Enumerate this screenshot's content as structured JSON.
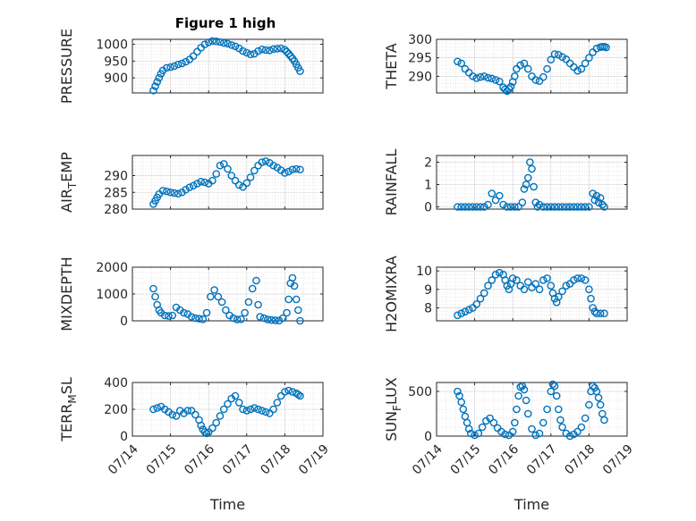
{
  "figure_title": "Figure 1 high",
  "colors": {
    "marker": "#0072BD",
    "axes": "#262626",
    "grid": "#d0d0d0"
  },
  "chart_data": [
    {
      "id": "pressure",
      "type": "scatter",
      "title": "Figure 1 high",
      "ylabel": "PRESSURE",
      "xlabel": "",
      "xlim": [
        "07/14",
        "07/19"
      ],
      "ylim": [
        855,
        1015
      ],
      "yticks": [
        900,
        950,
        1000
      ],
      "xticklabels": [],
      "grid": true,
      "x": [
        0.55,
        0.6,
        0.65,
        0.7,
        0.75,
        0.8,
        0.9,
        1.0,
        1.1,
        1.2,
        1.3,
        1.4,
        1.5,
        1.6,
        1.7,
        1.8,
        1.9,
        2.0,
        2.1,
        2.2,
        2.3,
        2.4,
        2.5,
        2.6,
        2.7,
        2.8,
        2.9,
        3.0,
        3.1,
        3.2,
        3.3,
        3.4,
        3.5,
        3.6,
        3.7,
        3.8,
        3.9,
        4.0,
        4.05,
        4.1,
        4.15,
        4.2,
        4.25,
        4.3,
        4.35,
        4.4
      ],
      "y": [
        862,
        875,
        888,
        900,
        912,
        922,
        930,
        932,
        935,
        940,
        943,
        948,
        955,
        965,
        978,
        990,
        1000,
        1006,
        1010,
        1009,
        1007,
        1004,
        1002,
        998,
        994,
        988,
        980,
        975,
        970,
        972,
        980,
        985,
        983,
        982,
        986,
        987,
        988,
        984,
        978,
        972,
        965,
        958,
        950,
        940,
        930,
        920
      ]
    },
    {
      "id": "theta",
      "type": "scatter",
      "ylabel": "THETA",
      "xlabel": "",
      "xlim": [
        "07/14",
        "07/19"
      ],
      "ylim": [
        285.5,
        300
      ],
      "yticks": [
        290,
        295,
        300
      ],
      "xticklabels": [],
      "grid": true,
      "x": [
        0.55,
        0.65,
        0.75,
        0.85,
        0.95,
        1.05,
        1.15,
        1.25,
        1.35,
        1.45,
        1.55,
        1.65,
        1.75,
        1.8,
        1.85,
        1.9,
        1.95,
        2.0,
        2.05,
        2.1,
        2.2,
        2.3,
        2.4,
        2.5,
        2.6,
        2.7,
        2.8,
        2.9,
        3.0,
        3.1,
        3.2,
        3.3,
        3.4,
        3.5,
        3.6,
        3.7,
        3.8,
        3.9,
        4.0,
        4.1,
        4.2,
        4.3,
        4.35,
        4.4,
        4.45
      ],
      "y": [
        294,
        293.5,
        292,
        291,
        290,
        289.5,
        289.8,
        290,
        289.6,
        289.4,
        289,
        288.6,
        287,
        286.5,
        286,
        286.6,
        287.2,
        288.5,
        290,
        292,
        293,
        293.5,
        292,
        290,
        289,
        288.7,
        289.8,
        292,
        294.5,
        296,
        295.8,
        295.2,
        294.6,
        293.5,
        292.5,
        291.5,
        292,
        293.5,
        295,
        296.5,
        297.5,
        297.9,
        298,
        298,
        297.8
      ]
    },
    {
      "id": "air_temp",
      "type": "scatter",
      "ylabel": "AIR_TEMP",
      "ylabel_parts": [
        "AIR",
        "T",
        "EMP"
      ],
      "xlabel": "",
      "xlim": [
        "07/14",
        "07/19"
      ],
      "ylim": [
        280,
        296
      ],
      "yticks": [
        280,
        285,
        290
      ],
      "xticklabels": [],
      "grid": true,
      "x": [
        0.55,
        0.6,
        0.65,
        0.7,
        0.8,
        0.9,
        1.0,
        1.1,
        1.2,
        1.3,
        1.4,
        1.5,
        1.6,
        1.7,
        1.8,
        1.9,
        2.0,
        2.1,
        2.2,
        2.3,
        2.4,
        2.5,
        2.6,
        2.7,
        2.8,
        2.9,
        3.0,
        3.1,
        3.2,
        3.3,
        3.4,
        3.5,
        3.6,
        3.7,
        3.8,
        3.9,
        4.0,
        4.1,
        4.2,
        4.3,
        4.4
      ],
      "y": [
        281.5,
        282.5,
        283.5,
        284.5,
        285.5,
        285.3,
        285,
        284.8,
        284.6,
        285,
        285.8,
        286.5,
        287,
        287.6,
        288.2,
        288,
        287.6,
        288.5,
        290.5,
        293,
        293.5,
        292,
        290,
        288.5,
        287.2,
        286.6,
        287.8,
        289.5,
        291.5,
        293,
        294,
        294.3,
        293.8,
        293,
        292.4,
        291.6,
        290.8,
        291.2,
        291.8,
        292,
        291.8
      ]
    },
    {
      "id": "rainfall",
      "type": "scatter",
      "ylabel": "RAINFALL",
      "xlabel": "",
      "xlim": [
        "07/14",
        "07/19"
      ],
      "ylim": [
        -0.1,
        2.3
      ],
      "yticks": [
        0,
        1,
        2
      ],
      "xticklabels": [],
      "grid": true,
      "x": [
        0.55,
        0.65,
        0.75,
        0.85,
        0.95,
        1.05,
        1.15,
        1.25,
        1.35,
        1.45,
        1.55,
        1.65,
        1.75,
        1.85,
        1.95,
        2.05,
        2.15,
        2.25,
        2.3,
        2.35,
        2.4,
        2.45,
        2.5,
        2.55,
        2.6,
        2.65,
        2.7,
        2.8,
        2.9,
        3.0,
        3.1,
        3.2,
        3.3,
        3.4,
        3.5,
        3.6,
        3.7,
        3.8,
        3.9,
        4.0,
        4.1,
        4.15,
        4.2,
        4.25,
        4.3,
        4.35,
        4.4
      ],
      "y": [
        0,
        0,
        0,
        0,
        0,
        0,
        0,
        0,
        0.1,
        0.6,
        0.3,
        0.5,
        0.1,
        0,
        0,
        0,
        0,
        0.2,
        0.8,
        1.0,
        1.3,
        2.0,
        1.7,
        0.9,
        0.2,
        0,
        0.1,
        0,
        0,
        0,
        0,
        0,
        0,
        0,
        0,
        0,
        0,
        0,
        0,
        0,
        0.6,
        0.3,
        0.5,
        0.2,
        0.4,
        0.1,
        0
      ]
    },
    {
      "id": "mixdepth",
      "type": "scatter",
      "ylabel": "MIXDEPTH",
      "xlabel": "",
      "xlim": [
        "07/14",
        "07/19"
      ],
      "ylim": [
        0,
        2000
      ],
      "yticks": [
        0,
        1000,
        2000
      ],
      "xticklabels": [],
      "grid": true,
      "x": [
        0.55,
        0.6,
        0.65,
        0.7,
        0.75,
        0.85,
        0.95,
        1.05,
        1.15,
        1.25,
        1.35,
        1.45,
        1.55,
        1.65,
        1.75,
        1.85,
        1.95,
        2.05,
        2.15,
        2.25,
        2.35,
        2.45,
        2.55,
        2.65,
        2.75,
        2.85,
        2.95,
        3.05,
        3.15,
        3.25,
        3.3,
        3.35,
        3.45,
        3.55,
        3.65,
        3.75,
        3.85,
        3.95,
        4.05,
        4.1,
        4.15,
        4.2,
        4.25,
        4.3,
        4.35,
        4.4
      ],
      "y": [
        1200,
        900,
        600,
        400,
        300,
        200,
        180,
        200,
        500,
        400,
        300,
        250,
        150,
        100,
        80,
        60,
        300,
        900,
        1150,
        900,
        700,
        400,
        200,
        100,
        50,
        60,
        300,
        700,
        1200,
        1500,
        600,
        150,
        100,
        50,
        30,
        20,
        10,
        100,
        300,
        800,
        1400,
        1600,
        1300,
        800,
        400,
        0
      ]
    },
    {
      "id": "h2omixra",
      "type": "scatter",
      "ylabel": "H2OMIXRA",
      "xlabel": "",
      "xlim": [
        "07/14",
        "07/19"
      ],
      "ylim": [
        7.3,
        10.2
      ],
      "yticks": [
        8,
        9,
        10
      ],
      "xticklabels": [],
      "grid": true,
      "x": [
        0.55,
        0.65,
        0.75,
        0.85,
        0.95,
        1.05,
        1.15,
        1.25,
        1.35,
        1.45,
        1.55,
        1.65,
        1.75,
        1.8,
        1.85,
        1.9,
        1.95,
        2.0,
        2.1,
        2.2,
        2.3,
        2.4,
        2.5,
        2.6,
        2.7,
        2.8,
        2.9,
        3.0,
        3.05,
        3.1,
        3.15,
        3.2,
        3.3,
        3.4,
        3.5,
        3.6,
        3.7,
        3.8,
        3.9,
        4.0,
        4.05,
        4.1,
        4.15,
        4.2,
        4.3,
        4.4
      ],
      "y": [
        7.6,
        7.7,
        7.8,
        7.9,
        8.0,
        8.2,
        8.5,
        8.8,
        9.2,
        9.5,
        9.8,
        9.9,
        9.8,
        9.5,
        9.2,
        9.0,
        9.3,
        9.6,
        9.5,
        9.2,
        9.0,
        9.4,
        9.1,
        9.3,
        9.0,
        9.5,
        9.6,
        9.2,
        8.8,
        8.5,
        8.3,
        8.6,
        8.9,
        9.2,
        9.3,
        9.5,
        9.6,
        9.6,
        9.5,
        9.0,
        8.5,
        8.0,
        7.8,
        7.7,
        7.7,
        7.7
      ]
    },
    {
      "id": "terr_msl",
      "type": "scatter",
      "ylabel": "TERR_MSL",
      "ylabel_parts": [
        "TERR",
        "M",
        "SL"
      ],
      "xlabel": "Time",
      "xlim": [
        "07/14",
        "07/19"
      ],
      "ylim": [
        0,
        400
      ],
      "yticks": [
        0,
        200,
        400
      ],
      "xticklabels": [
        "07/14",
        "07/15",
        "07/16",
        "07/17",
        "07/18",
        "07/19"
      ],
      "grid": true,
      "x": [
        0.55,
        0.65,
        0.75,
        0.85,
        0.95,
        1.05,
        1.15,
        1.25,
        1.35,
        1.45,
        1.55,
        1.65,
        1.75,
        1.8,
        1.85,
        1.9,
        1.95,
        2.0,
        2.1,
        2.2,
        2.3,
        2.4,
        2.5,
        2.6,
        2.7,
        2.8,
        2.9,
        3.0,
        3.1,
        3.2,
        3.3,
        3.4,
        3.5,
        3.6,
        3.7,
        3.8,
        3.9,
        4.0,
        4.1,
        4.2,
        4.3,
        4.35,
        4.4
      ],
      "y": [
        200,
        210,
        220,
        200,
        180,
        160,
        150,
        190,
        170,
        190,
        190,
        160,
        120,
        80,
        50,
        30,
        20,
        30,
        60,
        100,
        150,
        200,
        240,
        280,
        300,
        250,
        200,
        190,
        200,
        210,
        200,
        190,
        180,
        170,
        200,
        250,
        300,
        330,
        340,
        330,
        320,
        310,
        300
      ]
    },
    {
      "id": "sun_flux",
      "type": "scatter",
      "ylabel": "SUN_FLUX",
      "ylabel_parts": [
        "SUN",
        "F",
        "LUX"
      ],
      "xlabel": "Time",
      "xlim": [
        "07/14",
        "07/19"
      ],
      "ylim": [
        0,
        600
      ],
      "yticks": [
        0,
        500
      ],
      "xticklabels": [
        "07/14",
        "07/15",
        "07/16",
        "07/17",
        "07/18",
        "07/19"
      ],
      "grid": true,
      "x": [
        0.55,
        0.6,
        0.65,
        0.7,
        0.75,
        0.8,
        0.85,
        0.9,
        1.0,
        1.1,
        1.2,
        1.3,
        1.4,
        1.5,
        1.6,
        1.7,
        1.8,
        1.9,
        2.0,
        2.05,
        2.1,
        2.15,
        2.2,
        2.25,
        2.3,
        2.35,
        2.4,
        2.5,
        2.6,
        2.7,
        2.8,
        2.9,
        3.0,
        3.05,
        3.1,
        3.15,
        3.2,
        3.25,
        3.3,
        3.4,
        3.5,
        3.6,
        3.7,
        3.8,
        3.9,
        4.0,
        4.05,
        4.1,
        4.15,
        4.2,
        4.25,
        4.3,
        4.35,
        4.4
      ],
      "y": [
        500,
        450,
        380,
        300,
        220,
        150,
        80,
        30,
        10,
        30,
        100,
        170,
        200,
        150,
        90,
        50,
        20,
        10,
        50,
        150,
        300,
        450,
        550,
        560,
        520,
        400,
        250,
        80,
        10,
        30,
        150,
        300,
        500,
        580,
        560,
        450,
        300,
        180,
        100,
        30,
        0,
        20,
        50,
        100,
        200,
        350,
        500,
        560,
        540,
        500,
        430,
        350,
        250,
        180
      ]
    }
  ]
}
